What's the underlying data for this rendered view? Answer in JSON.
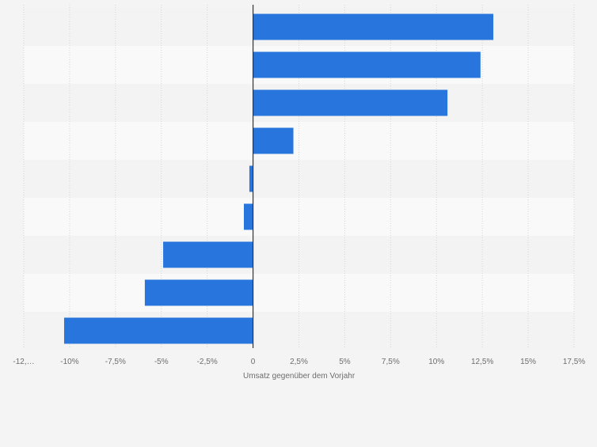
{
  "chart_data": {
    "type": "bar",
    "orientation": "horizontal",
    "categories": [
      "",
      "",
      "",
      "",
      "",
      "",
      "",
      "",
      ""
    ],
    "values": [
      13.1,
      12.4,
      10.6,
      2.2,
      -0.2,
      -0.5,
      -4.9,
      -5.9,
      -10.3
    ],
    "title": "",
    "xlabel": "Umsatz gegenüber dem Vorjahr",
    "ylabel": "",
    "xlim": [
      -12.5,
      17.5
    ],
    "ticks": [
      -12.5,
      -10,
      -7.5,
      -5,
      -2.5,
      0,
      2.5,
      5,
      7.5,
      10,
      12.5,
      15,
      17.5
    ],
    "tick_labels": [
      "-12,…",
      "-10%",
      "-7,5%",
      "-5%",
      "-2,5%",
      "0",
      "2,5%",
      "5%",
      "7,5%",
      "10%",
      "12,5%",
      "15%",
      "17,5%"
    ],
    "grid": true,
    "legend": false,
    "bar_color": "#2876dd",
    "band_colors": [
      "#f3f3f3",
      "#f9f9f9"
    ],
    "axis_color": "#333333",
    "tick_label_color": "#6d6d6d"
  }
}
